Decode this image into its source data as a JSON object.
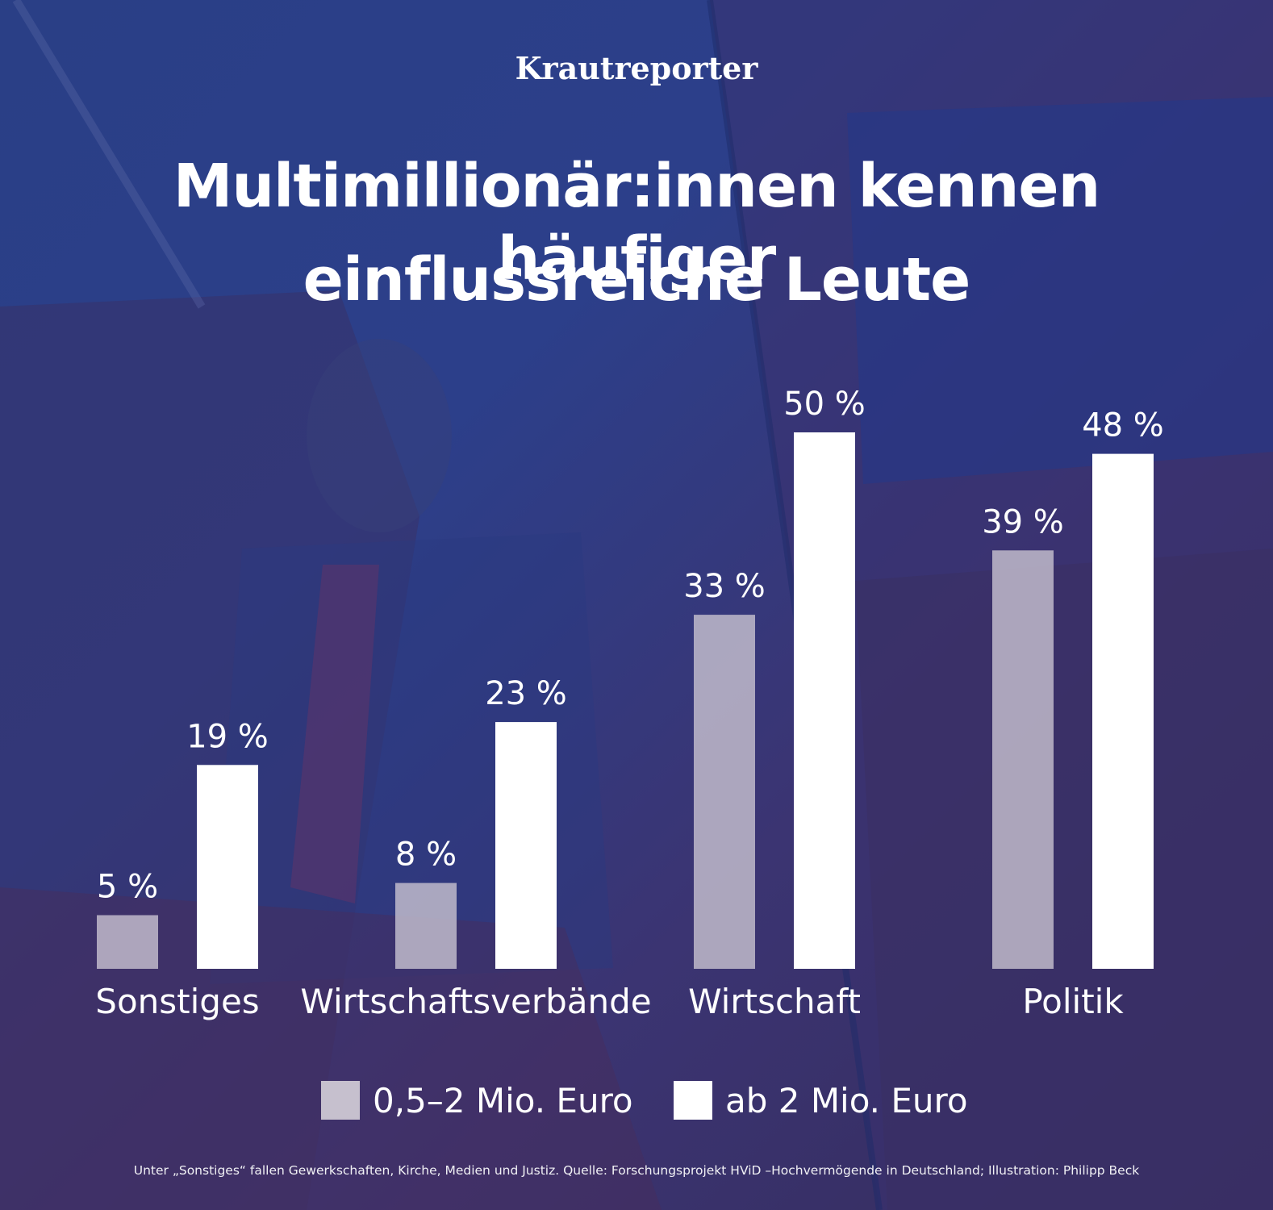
{
  "brand": "Krautreporter",
  "title_lines": [
    "Multimillionär:innen kennen häufiger",
    "einflussreiche Leute"
  ],
  "footnote": "Unter „Sonstiges“ fallen Gewerkschaften, Kirche, Medien und Justiz. Quelle: Forschungsprojekt HViD –Hochvermögende in Deutschland; Illustration: Philipp Beck",
  "colors": {
    "series_low": "#c6c0ce",
    "series_high": "#ffffff",
    "background": "#2c3f8a"
  },
  "chart_data": {
    "type": "bar",
    "categories": [
      "Sonstiges",
      "Wirtschaftsverbände",
      "Wirtschaft",
      "Politik"
    ],
    "series": [
      {
        "name": "0,5–2 Mio. Euro",
        "values": [
          5,
          8,
          33,
          39
        ],
        "labels": [
          "5 %",
          "8 %",
          "33 %",
          "39 %"
        ]
      },
      {
        "name": "ab 2 Mio. Euro",
        "values": [
          19,
          23,
          50,
          48
        ],
        "labels": [
          "19 %",
          "23 %",
          "50 %",
          "48 %"
        ]
      }
    ],
    "ylim": [
      0,
      50
    ],
    "grid": false,
    "legend_position": "bottom"
  }
}
